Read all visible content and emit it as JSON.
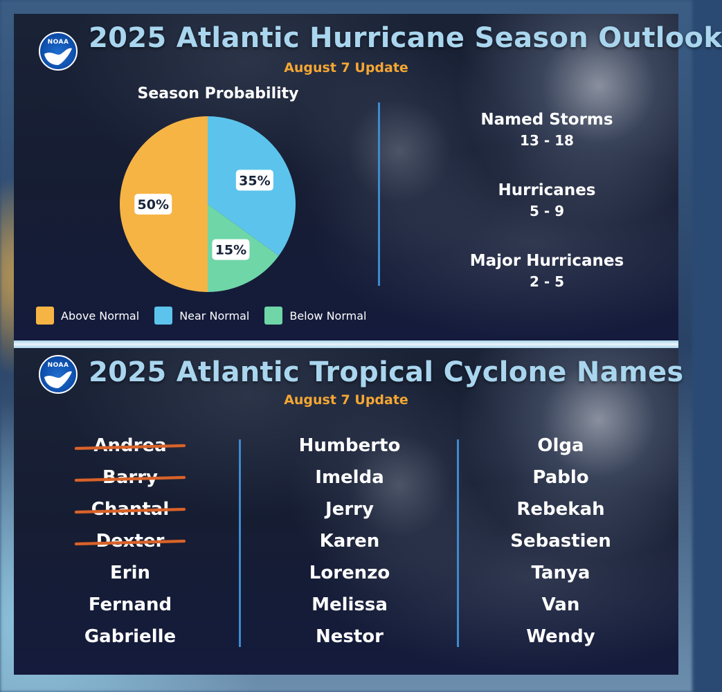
{
  "top": {
    "title": "2025 Atlantic Hurricane Season Outlook",
    "update": "August 7 Update",
    "logo_text": "NOAA"
  },
  "chart_data": {
    "type": "pie",
    "title": "Season Probability",
    "categories": [
      "Above Normal",
      "Near Normal",
      "Below Normal"
    ],
    "values": [
      50,
      35,
      15
    ],
    "labels": [
      "50%",
      "35%",
      "15%"
    ],
    "colors": [
      "#f6b445",
      "#5cc4ec",
      "#6fd6a8"
    ],
    "legend_position": "bottom"
  },
  "stats": [
    {
      "label": "Named Storms",
      "value": "13 - 18"
    },
    {
      "label": "Hurricanes",
      "value": "5 - 9"
    },
    {
      "label": "Major Hurricanes",
      "value": "2 - 5"
    }
  ],
  "bottom": {
    "title": "2025 Atlantic Tropical Cyclone Names",
    "update": "August 7 Update",
    "logo_text": "NOAA"
  },
  "names": [
    [
      {
        "name": "Andrea",
        "used": true
      },
      {
        "name": "Barry",
        "used": true
      },
      {
        "name": "Chantal",
        "used": true
      },
      {
        "name": "Dexter",
        "used": true
      },
      {
        "name": "Erin",
        "used": false
      },
      {
        "name": "Fernand",
        "used": false
      },
      {
        "name": "Gabrielle",
        "used": false
      }
    ],
    [
      {
        "name": "Humberto",
        "used": false
      },
      {
        "name": "Imelda",
        "used": false
      },
      {
        "name": "Jerry",
        "used": false
      },
      {
        "name": "Karen",
        "used": false
      },
      {
        "name": "Lorenzo",
        "used": false
      },
      {
        "name": "Melissa",
        "used": false
      },
      {
        "name": "Nestor",
        "used": false
      }
    ],
    [
      {
        "name": "Olga",
        "used": false
      },
      {
        "name": "Pablo",
        "used": false
      },
      {
        "name": "Rebekah",
        "used": false
      },
      {
        "name": "Sebastien",
        "used": false
      },
      {
        "name": "Tanya",
        "used": false
      },
      {
        "name": "Van",
        "used": false
      },
      {
        "name": "Wendy",
        "used": false
      }
    ]
  ],
  "colors": {
    "title": "#a9d6ee",
    "update": "#f5a733",
    "strike": "#d9632a",
    "divider": "#3d8bd0"
  }
}
